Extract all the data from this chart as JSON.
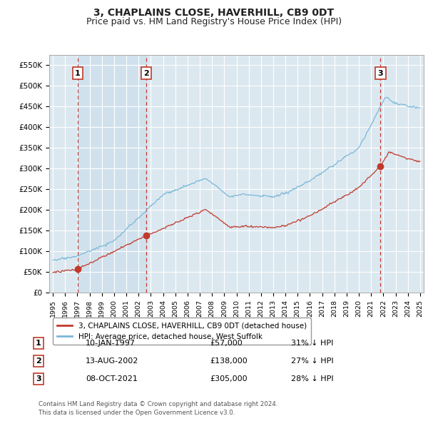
{
  "title": "3, CHAPLAINS CLOSE, HAVERHILL, CB9 0DT",
  "subtitle": "Price paid vs. HM Land Registry's House Price Index (HPI)",
  "ylabel_vals": [
    "£0",
    "£50K",
    "£100K",
    "£150K",
    "£200K",
    "£250K",
    "£300K",
    "£350K",
    "£400K",
    "£450K",
    "£500K",
    "£550K"
  ],
  "yticks": [
    0,
    50000,
    100000,
    150000,
    200000,
    250000,
    300000,
    350000,
    400000,
    450000,
    500000,
    550000
  ],
  "xlim_start": 1994.7,
  "xlim_end": 2025.3,
  "ylim_min": 0,
  "ylim_max": 575000,
  "purchase_dates": [
    1997.03,
    2002.62,
    2021.77
  ],
  "purchase_prices": [
    57000,
    138000,
    305000
  ],
  "purchase_labels": [
    "1",
    "2",
    "3"
  ],
  "hpi_color": "#7ab8d8",
  "price_color": "#c0392b",
  "background_color": "#dce8f0",
  "shade_color": "#d0e4f0",
  "grid_color": "#c8d8e8",
  "legend_entry1": "3, CHAPLAINS CLOSE, HAVERHILL, CB9 0DT (detached house)",
  "legend_entry2": "HPI: Average price, detached house, West Suffolk",
  "table_rows": [
    [
      "1",
      "10-JAN-1997",
      "£57,000",
      "31% ↓ HPI"
    ],
    [
      "2",
      "13-AUG-2002",
      "£138,000",
      "27% ↓ HPI"
    ],
    [
      "3",
      "08-OCT-2021",
      "£305,000",
      "28% ↓ HPI"
    ]
  ],
  "footnote": "Contains HM Land Registry data © Crown copyright and database right 2024.\nThis data is licensed under the Open Government Licence v3.0.",
  "title_fontsize": 10,
  "subtitle_fontsize": 9
}
